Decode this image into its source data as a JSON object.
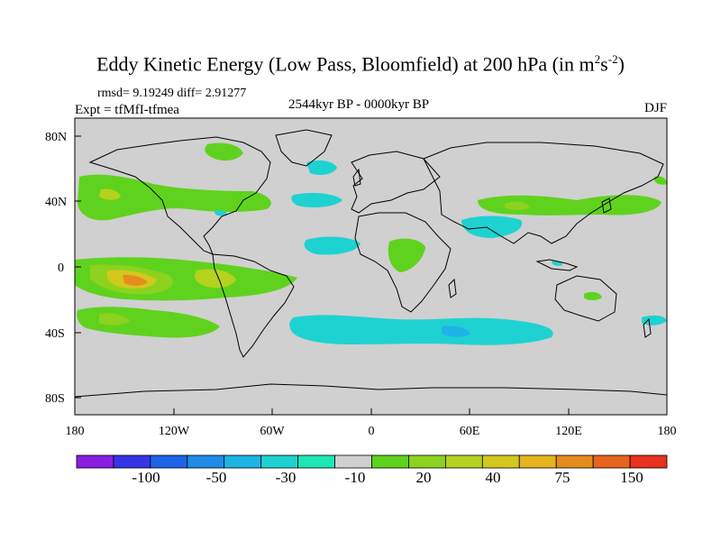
{
  "title": {
    "main": "Eddy Kinetic Energy (Low Pass, Bloomfield) at 200 hPa (in m",
    "sup1": "2",
    "mid": "s",
    "sup2": "-2",
    "end": ")"
  },
  "stats": "rmsd= 9.19249 diff= 2.91277",
  "experiment": "Expt = tfMfI-tfmea",
  "period": "2544kyr BP - 0000kyr BP",
  "season": "DJF",
  "map": {
    "projection": "equirectangular",
    "lon_range": [
      -180,
      180
    ],
    "lat_range": [
      -90,
      90
    ],
    "background_color": "#d0d0d0",
    "lat_ticks": [
      "80N",
      "40N",
      "0",
      "40S",
      "80S"
    ],
    "lon_ticks": [
      "180",
      "120W",
      "60W",
      "0",
      "60E",
      "120E",
      "180"
    ]
  },
  "colorbar": {
    "colors": [
      "#8a1ee0",
      "#3535e6",
      "#1e64e6",
      "#1e8ce6",
      "#1eb4e6",
      "#1ed2d2",
      "#1ee6b4",
      "#d0d0d0",
      "#5fd21e",
      "#8cd21e",
      "#b4d21e",
      "#d2c81e",
      "#e6b41e",
      "#e68c1e",
      "#e6641e",
      "#e6321e"
    ],
    "labels": [
      "-100",
      "-50",
      "-30",
      "-10",
      "20",
      "40",
      "75",
      "150"
    ]
  }
}
